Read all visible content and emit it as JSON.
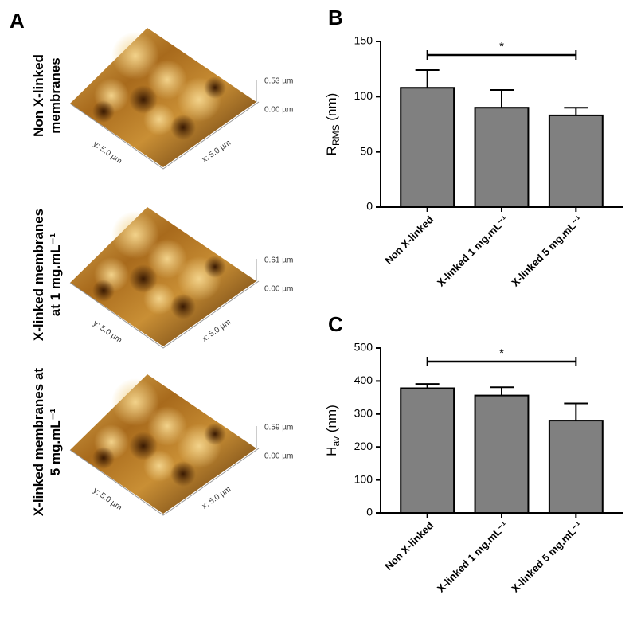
{
  "panel_a": {
    "letter": "A",
    "images": [
      {
        "label": [
          "Non X-linked",
          "membranes"
        ],
        "zmax": "0.53 µm",
        "zmin": "0.00 µm",
        "ylab": "y: 5.0 µm",
        "xlab": "x: 5.0 µm"
      },
      {
        "label": [
          "X-linked membranes",
          "at 1 mg.mL⁻¹"
        ],
        "zmax": "0.61 µm",
        "zmin": "0.00 µm",
        "ylab": "y: 5.0 µm",
        "xlab": "x: 5.0 µm"
      },
      {
        "label": [
          "X-linked membranes at",
          "5 mg.mL⁻¹"
        ],
        "zmax": "0.59 µm",
        "zmin": "0.00 µm",
        "ylab": "y: 5.0 µm",
        "xlab": "x: 5.0 µm"
      }
    ]
  },
  "chart_data": [
    {
      "type": "bar",
      "letter": "B",
      "ylabel": {
        "main": "R",
        "sub": "RMS",
        "unit": " (nm)"
      },
      "categories": [
        "Non X-linked",
        "X-linked 1 mg.mL⁻¹",
        "X-linked 5 mg.mL⁻¹"
      ],
      "values": [
        108,
        90,
        83
      ],
      "errors": [
        16,
        16,
        7
      ],
      "color": "#808080",
      "ylim": [
        0,
        150
      ],
      "yticks": [
        0,
        50,
        100,
        150
      ],
      "significance": "*"
    },
    {
      "type": "bar",
      "letter": "C",
      "ylabel": {
        "main": "H",
        "sub": "av",
        "unit": " (nm)"
      },
      "categories": [
        "Non X-linked",
        "X-linked 1 mg.mL⁻¹",
        "X-linked 5 mg.mL⁻¹"
      ],
      "values": [
        378,
        356,
        280
      ],
      "errors": [
        13,
        25,
        52
      ],
      "color": "#808080",
      "ylim": [
        0,
        500
      ],
      "yticks": [
        0,
        100,
        200,
        300,
        400,
        500
      ],
      "significance": "*"
    }
  ]
}
